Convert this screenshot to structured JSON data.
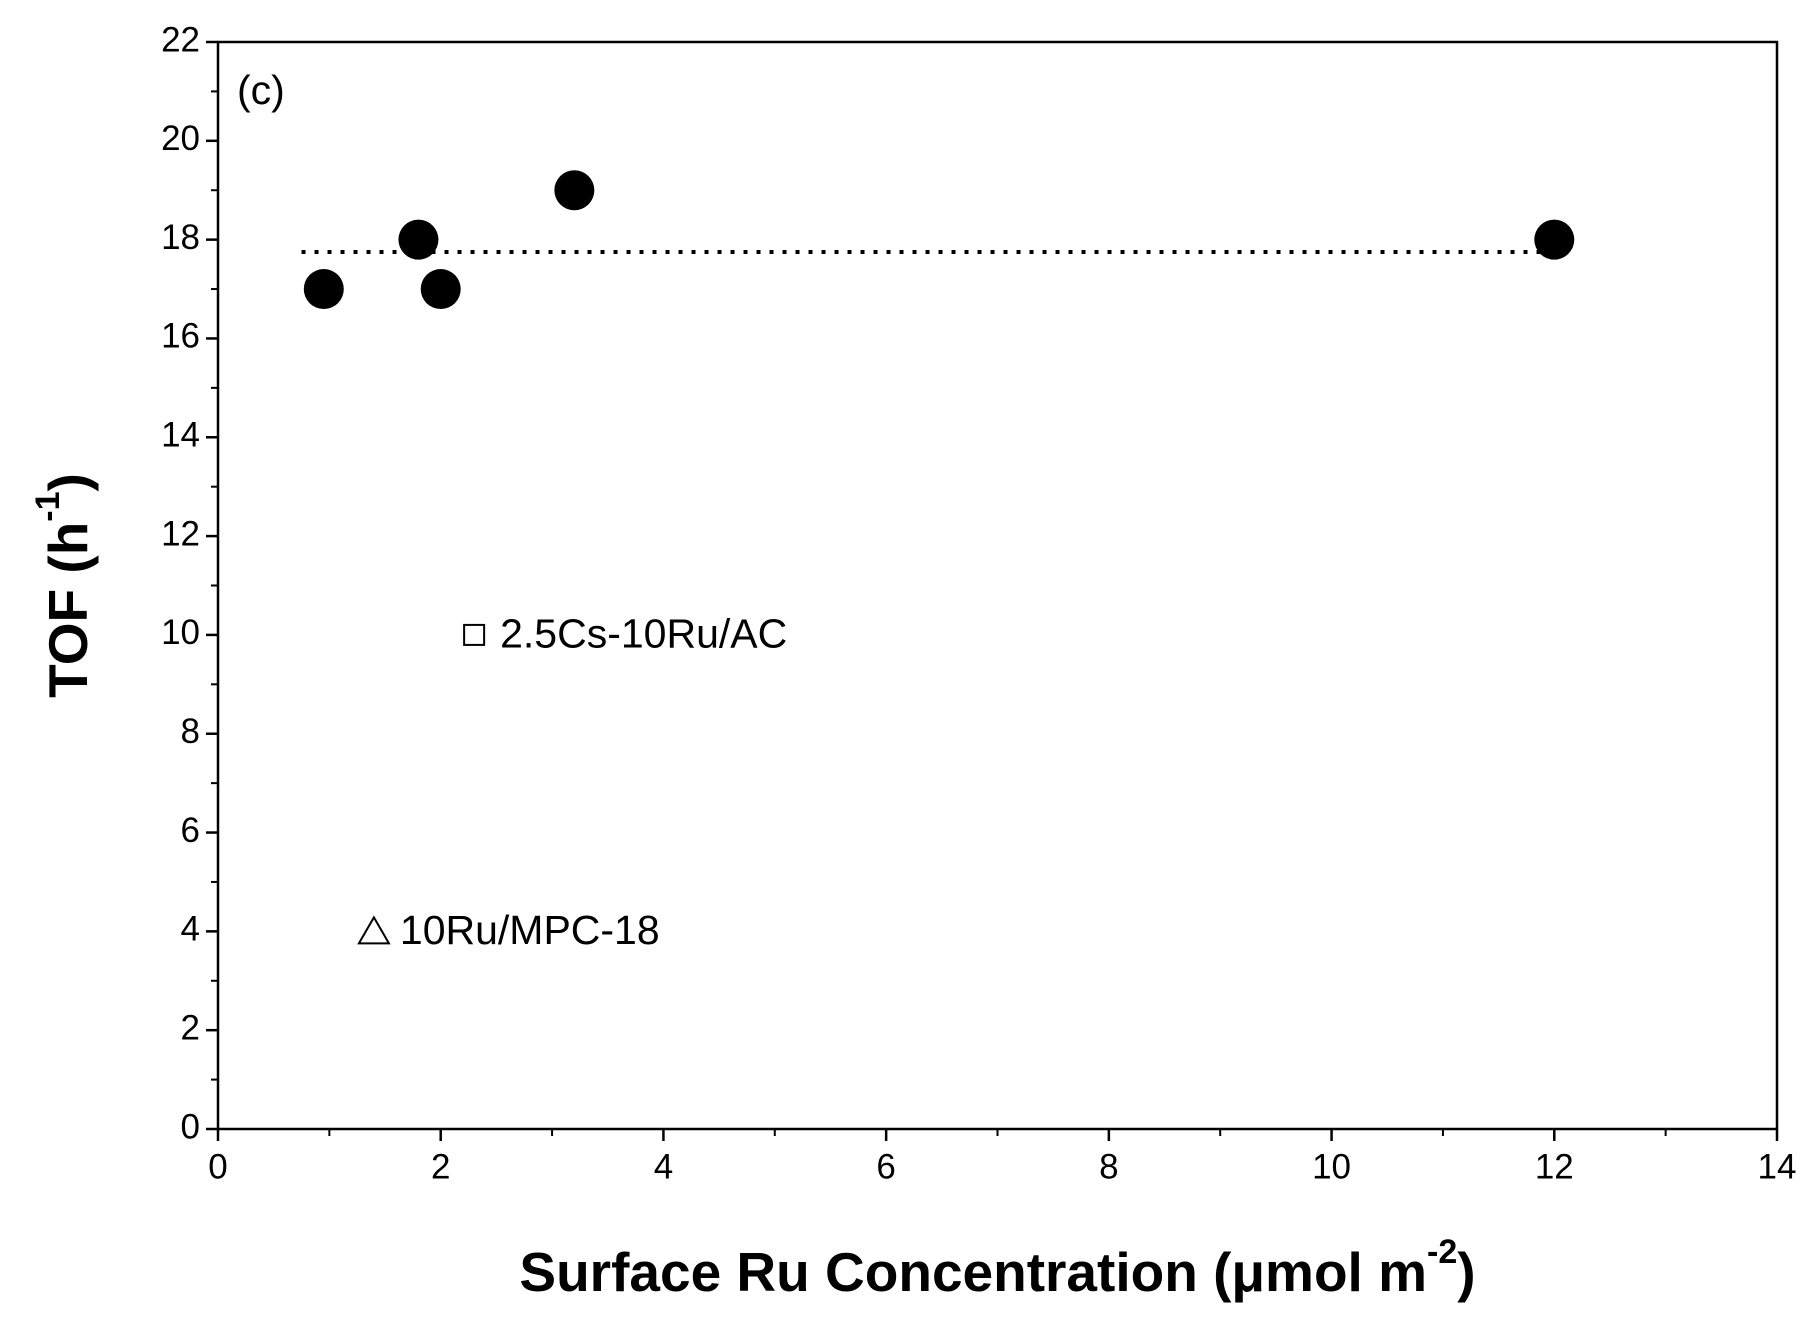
{
  "chart_data": {
    "type": "scatter",
    "panel_label": "(c)",
    "xlabel": [
      "Surface Ru Concentration (μmol m",
      "-2",
      ")"
    ],
    "ylabel": [
      "TOF (h",
      "-1",
      ")"
    ],
    "xlim": [
      0,
      14
    ],
    "ylim": [
      0,
      22
    ],
    "xticks": [
      0,
      2,
      4,
      6,
      8,
      10,
      12,
      14
    ],
    "yticks": [
      0,
      2,
      4,
      6,
      8,
      10,
      12,
      14,
      16,
      18,
      20,
      22
    ],
    "xminorticks": [
      1,
      3,
      5,
      7,
      9,
      11,
      13
    ],
    "yminorticks": [
      1,
      3,
      5,
      7,
      9,
      11,
      13,
      15,
      17,
      19,
      21
    ],
    "series": [
      {
        "marker": "circle",
        "color": "#000000",
        "x": [
          0.95,
          1.8,
          2.0,
          3.2,
          12.0
        ],
        "values": [
          17,
          18,
          17,
          19,
          18
        ]
      },
      {
        "marker": "square",
        "color": "#000000",
        "x": [
          2.3
        ],
        "values": [
          10
        ],
        "label": "2.5Cs-10Ru/AC"
      },
      {
        "marker": "triangle",
        "color": "#000000",
        "x": [
          1.4
        ],
        "values": [
          4
        ],
        "label": "10Ru/MPC-18"
      }
    ],
    "fit_line": {
      "x": [
        0.75,
        12.0
      ],
      "values": [
        17.75,
        17.75
      ],
      "color": "#000000",
      "style": "dotted"
    }
  }
}
